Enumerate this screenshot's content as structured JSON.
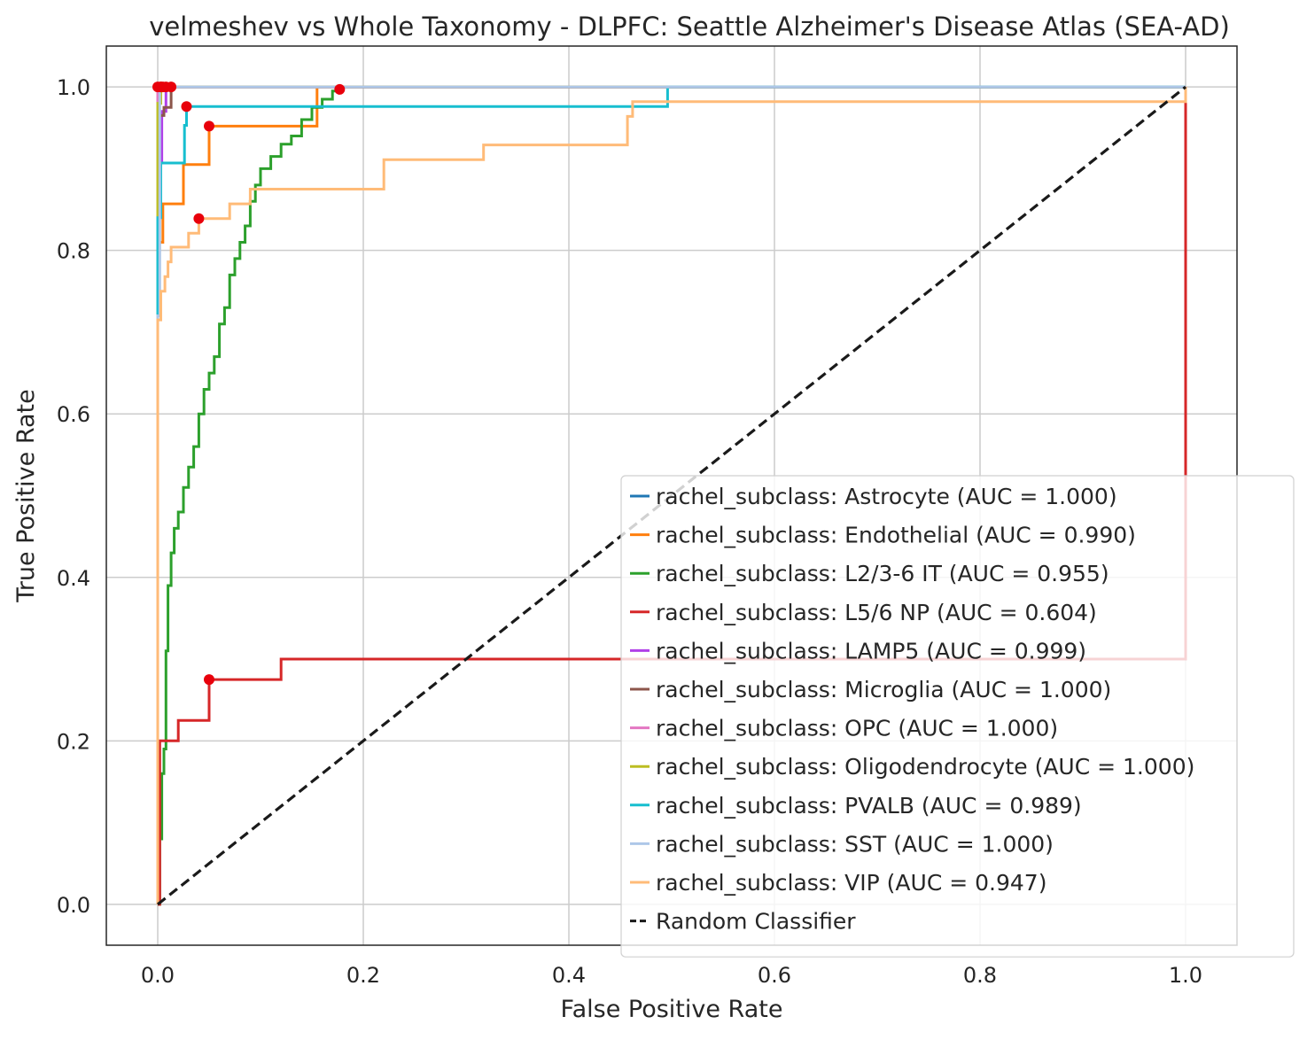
{
  "chart_data": {
    "type": "line",
    "title": "velmeshev vs Whole Taxonomy - DLPFC: Seattle Alzheimer's Disease Atlas (SEA-AD)",
    "xlabel": "False Positive Rate",
    "ylabel": "True Positive Rate",
    "xlim": [
      -0.05,
      1.05
    ],
    "ylim": [
      -0.05,
      1.05
    ],
    "xticks": [
      "0.0",
      "0.2",
      "0.4",
      "0.6",
      "0.8",
      "1.0"
    ],
    "yticks": [
      "0.0",
      "0.2",
      "0.4",
      "0.6",
      "0.8",
      "1.0"
    ],
    "grid": true,
    "legend_position": "lower-right",
    "series": [
      {
        "name": "rachel_subclass: Astrocyte (AUC = 1.000)",
        "color": "#1f77b4",
        "x": [
          0,
          0,
          1
        ],
        "y": [
          0,
          1,
          1
        ],
        "point": [
          0.0,
          1.0
        ]
      },
      {
        "name": "rachel_subclass: Endothelial (AUC = 0.990)",
        "color": "#ff7f0e",
        "x": [
          0,
          0,
          0.005,
          0.005,
          0.025,
          0.025,
          0.05,
          0.05,
          0.155,
          0.155,
          1.0
        ],
        "y": [
          0,
          0.81,
          0.81,
          0.857,
          0.857,
          0.905,
          0.905,
          0.952,
          0.952,
          1.0,
          1.0
        ],
        "point": [
          0.05,
          0.952
        ]
      },
      {
        "name": "rachel_subclass: L2/3-6 IT (AUC = 0.955)",
        "color": "#2ca02c",
        "x": [
          0,
          0.002,
          0.002,
          0.004,
          0.004,
          0.006,
          0.006,
          0.008,
          0.008,
          0.01,
          0.01,
          0.013,
          0.013,
          0.016,
          0.016,
          0.02,
          0.02,
          0.025,
          0.025,
          0.03,
          0.03,
          0.035,
          0.035,
          0.04,
          0.04,
          0.045,
          0.045,
          0.05,
          0.05,
          0.055,
          0.055,
          0.06,
          0.06,
          0.065,
          0.065,
          0.07,
          0.07,
          0.075,
          0.075,
          0.08,
          0.08,
          0.085,
          0.085,
          0.09,
          0.09,
          0.095,
          0.095,
          0.1,
          0.1,
          0.11,
          0.11,
          0.12,
          0.12,
          0.13,
          0.13,
          0.14,
          0.14,
          0.15,
          0.15,
          0.16,
          0.16,
          0.17,
          0.17,
          0.177,
          0.177,
          1.0
        ],
        "y": [
          0,
          0,
          0.08,
          0.08,
          0.16,
          0.16,
          0.19,
          0.19,
          0.31,
          0.31,
          0.39,
          0.39,
          0.43,
          0.43,
          0.46,
          0.46,
          0.48,
          0.48,
          0.51,
          0.51,
          0.535,
          0.535,
          0.56,
          0.56,
          0.6,
          0.6,
          0.63,
          0.63,
          0.65,
          0.65,
          0.67,
          0.67,
          0.71,
          0.71,
          0.73,
          0.73,
          0.77,
          0.77,
          0.79,
          0.79,
          0.81,
          0.81,
          0.83,
          0.83,
          0.86,
          0.86,
          0.88,
          0.88,
          0.9,
          0.9,
          0.915,
          0.915,
          0.93,
          0.93,
          0.94,
          0.94,
          0.96,
          0.96,
          0.975,
          0.975,
          0.985,
          0.985,
          0.995,
          0.995,
          1.0,
          1.0
        ],
        "point": [
          0.177,
          0.997
        ]
      },
      {
        "name": "rachel_subclass: L5/6 NP (AUC = 0.604)",
        "color": "#d62728",
        "x": [
          0,
          0.002,
          0.002,
          0.02,
          0.02,
          0.05,
          0.05,
          0.12,
          0.12,
          1.0,
          1.0,
          1.0
        ],
        "y": [
          0,
          0,
          0.2,
          0.2,
          0.225,
          0.225,
          0.275,
          0.275,
          0.3,
          0.3,
          0.98,
          1.0
        ],
        "point": [
          0.05,
          0.275
        ]
      },
      {
        "name": "rachel_subclass: LAMP5 (AUC = 0.999)",
        "color": "#b040e8",
        "x": [
          0,
          0,
          0.004,
          0.004,
          0.008,
          0.008,
          1.0
        ],
        "y": [
          0,
          0.91,
          0.91,
          0.97,
          0.97,
          1.0,
          1.0
        ],
        "point": [
          0.008,
          1.0
        ]
      },
      {
        "name": "rachel_subclass: Microglia (AUC = 1.000)",
        "color": "#8c564b",
        "x": [
          0,
          0,
          0.006,
          0.006,
          0.013,
          0.013,
          1.0
        ],
        "y": [
          0,
          0.965,
          0.965,
          0.975,
          0.975,
          1.0,
          1.0
        ],
        "point": [
          0.013,
          1.0
        ]
      },
      {
        "name": "rachel_subclass: OPC (AUC = 1.000)",
        "color": "#e377c2",
        "x": [
          0,
          0,
          1
        ],
        "y": [
          0,
          1,
          1
        ],
        "point": [
          0.003,
          1.0
        ]
      },
      {
        "name": "rachel_subclass: Oligodendrocyte (AUC = 1.000)",
        "color": "#bcbd22",
        "x": [
          0,
          0,
          0.003,
          0.003,
          1.0
        ],
        "y": [
          0,
          0.98,
          0.98,
          1.0,
          1.0
        ],
        "point": [
          0.003,
          1.0
        ]
      },
      {
        "name": "rachel_subclass: PVALB (AUC = 0.989)",
        "color": "#17becf",
        "x": [
          0,
          0,
          0.003,
          0.003,
          0.026,
          0.026,
          0.028,
          0.028,
          0.496,
          0.496,
          1.0
        ],
        "y": [
          0,
          0.84,
          0.84,
          0.907,
          0.907,
          0.953,
          0.953,
          0.976,
          0.976,
          1.0,
          1.0
        ],
        "point": [
          0.028,
          0.976
        ]
      },
      {
        "name": "rachel_subclass: SST (AUC = 1.000)",
        "color": "#aec7e8",
        "x": [
          0,
          0,
          0.002,
          0.002,
          1.0
        ],
        "y": [
          0,
          0.72,
          0.72,
          1.0,
          1.0
        ],
        "point": [
          0.005,
          1.0
        ]
      },
      {
        "name": "rachel_subclass: VIP (AUC = 0.947)",
        "color": "#ffbb78",
        "x": [
          0,
          0,
          0.003,
          0.003,
          0.007,
          0.007,
          0.01,
          0.01,
          0.013,
          0.013,
          0.016,
          0.016,
          0.03,
          0.03,
          0.04,
          0.04,
          0.07,
          0.07,
          0.09,
          0.09,
          0.22,
          0.22,
          0.317,
          0.317,
          0.457,
          0.457,
          0.462,
          0.462,
          1.0,
          1.0
        ],
        "y": [
          0,
          0.715,
          0.715,
          0.75,
          0.75,
          0.768,
          0.768,
          0.786,
          0.786,
          0.804,
          0.804,
          0.804,
          0.804,
          0.821,
          0.821,
          0.839,
          0.839,
          0.857,
          0.857,
          0.875,
          0.875,
          0.911,
          0.911,
          0.929,
          0.929,
          0.964,
          0.964,
          0.982,
          0.982,
          1.0
        ],
        "point": [
          0.04,
          0.839
        ]
      }
    ],
    "reference": {
      "name": "Random Classifier",
      "color": "#1a1a1a",
      "x": [
        0,
        1
      ],
      "y": [
        0,
        1
      ],
      "dash": "dashed"
    },
    "point_color": "#e8000b"
  }
}
